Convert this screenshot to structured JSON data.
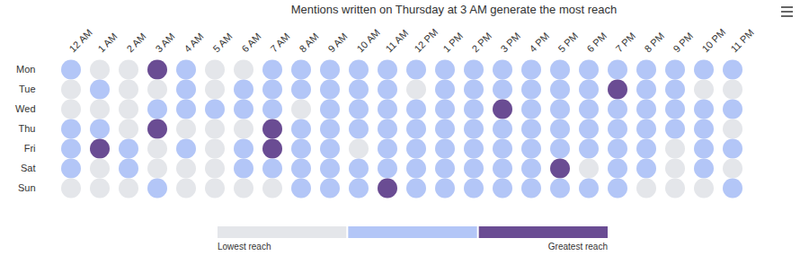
{
  "chart_data": {
    "type": "heatmap",
    "title": "Mentions written on Thursday at 3 AM generate the most reach",
    "x_categories": [
      "12 AM",
      "1 AM",
      "2 AM",
      "3 AM",
      "4 AM",
      "5 AM",
      "6 AM",
      "7 AM",
      "8 AM",
      "9 AM",
      "10 AM",
      "11 AM",
      "12 PM",
      "1 PM",
      "2 PM",
      "3 PM",
      "4 PM",
      "5 PM",
      "6 PM",
      "7 PM",
      "8 PM",
      "9 PM",
      "10 PM",
      "11 PM"
    ],
    "y_categories": [
      "Mon",
      "Tue",
      "Wed",
      "Thu",
      "Fri",
      "Sat",
      "Sun"
    ],
    "cells": [
      [
        1,
        0,
        0,
        2,
        1,
        0,
        0,
        1,
        1,
        1,
        1,
        1,
        1,
        1,
        1,
        1,
        1,
        1,
        1,
        1,
        1,
        1,
        1,
        1
      ],
      [
        0,
        1,
        0,
        0,
        1,
        0,
        1,
        1,
        1,
        1,
        1,
        1,
        0,
        1,
        1,
        1,
        1,
        1,
        1,
        2,
        1,
        1,
        0,
        0
      ],
      [
        0,
        0,
        0,
        1,
        1,
        1,
        1,
        1,
        0,
        1,
        1,
        1,
        1,
        1,
        1,
        2,
        1,
        1,
        1,
        1,
        1,
        1,
        1,
        1
      ],
      [
        1,
        1,
        0,
        2,
        0,
        0,
        0,
        2,
        1,
        1,
        1,
        1,
        1,
        1,
        1,
        1,
        1,
        1,
        1,
        1,
        1,
        1,
        1,
        0
      ],
      [
        1,
        2,
        1,
        0,
        1,
        0,
        1,
        2,
        1,
        1,
        0,
        1,
        1,
        1,
        1,
        1,
        1,
        1,
        1,
        1,
        1,
        0,
        1,
        1
      ],
      [
        1,
        0,
        1,
        0,
        0,
        0,
        1,
        1,
        1,
        1,
        1,
        1,
        1,
        1,
        1,
        1,
        1,
        2,
        0,
        1,
        1,
        0,
        1,
        0
      ],
      [
        0,
        0,
        0,
        1,
        0,
        0,
        0,
        0,
        1,
        1,
        1,
        2,
        1,
        1,
        1,
        1,
        1,
        1,
        1,
        1,
        0,
        0,
        0,
        1
      ]
    ],
    "colors": [
      "#e4e6ea",
      "#b3c6f7",
      "#6a4c93"
    ],
    "colorbar": {
      "range": [
        0,
        2
      ],
      "labels": [
        "Lowest reach",
        "Greatest reach"
      ]
    }
  }
}
